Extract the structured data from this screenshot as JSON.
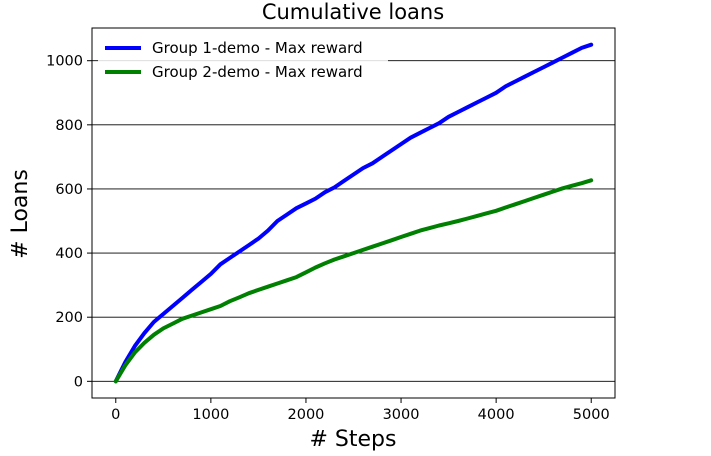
{
  "chart_data": {
    "type": "line",
    "title": "Cumulative loans",
    "xlabel": "# Steps",
    "ylabel": "# Loans",
    "xlim": [
      -250,
      5250
    ],
    "ylim": [
      -52,
      1102
    ],
    "xticks": [
      0,
      1000,
      2000,
      3000,
      4000,
      5000
    ],
    "yticks": [
      0,
      200,
      400,
      600,
      800,
      1000
    ],
    "grid": "horizontal",
    "legend_position": "top-left",
    "series": [
      {
        "name": "Group 1-demo - Max reward",
        "color": "#0000ff",
        "x": [
          0,
          100,
          200,
          300,
          400,
          500,
          600,
          700,
          800,
          900,
          1000,
          1100,
          1200,
          1300,
          1400,
          1500,
          1600,
          1700,
          1800,
          1900,
          2000,
          2100,
          2200,
          2300,
          2400,
          2500,
          2600,
          2700,
          2800,
          2900,
          3000,
          3100,
          3200,
          3300,
          3400,
          3500,
          3600,
          3700,
          3800,
          3900,
          4000,
          4100,
          4200,
          4300,
          4400,
          4500,
          4600,
          4700,
          4800,
          4900,
          5000
        ],
        "y": [
          0,
          60,
          110,
          150,
          185,
          210,
          235,
          260,
          285,
          310,
          335,
          365,
          385,
          405,
          425,
          445,
          470,
          500,
          520,
          540,
          555,
          570,
          590,
          605,
          625,
          645,
          665,
          680,
          700,
          720,
          740,
          760,
          775,
          790,
          805,
          825,
          840,
          855,
          870,
          885,
          900,
          920,
          935,
          950,
          965,
          980,
          995,
          1010,
          1025,
          1040,
          1050
        ]
      },
      {
        "name": "Group 2-demo - Max reward",
        "color": "#008000",
        "x": [
          0,
          100,
          200,
          300,
          400,
          500,
          600,
          700,
          800,
          900,
          1000,
          1100,
          1200,
          1300,
          1400,
          1500,
          1600,
          1700,
          1800,
          1900,
          2000,
          2100,
          2200,
          2300,
          2400,
          2500,
          2600,
          2700,
          2800,
          2900,
          3000,
          3100,
          3200,
          3300,
          3400,
          3500,
          3600,
          3700,
          3800,
          3900,
          4000,
          4100,
          4200,
          4300,
          4400,
          4500,
          4600,
          4700,
          4800,
          4900,
          5000
        ],
        "y": [
          0,
          50,
          90,
          120,
          145,
          165,
          180,
          195,
          205,
          215,
          225,
          235,
          250,
          262,
          275,
          285,
          295,
          305,
          315,
          325,
          340,
          355,
          368,
          380,
          390,
          400,
          410,
          420,
          430,
          440,
          450,
          460,
          470,
          478,
          486,
          493,
          500,
          508,
          516,
          524,
          532,
          542,
          552,
          562,
          572,
          582,
          592,
          602,
          610,
          618,
          627
        ]
      }
    ]
  }
}
